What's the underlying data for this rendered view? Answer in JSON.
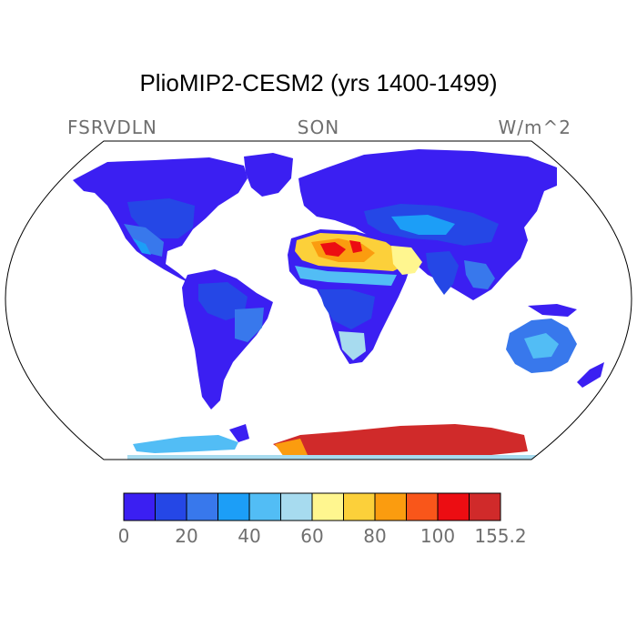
{
  "title": "PlioMIP2-CESM2 (yrs 1400-1499)",
  "variable": "FSRVDLN",
  "season": "SON",
  "units": "W/m^2",
  "colorbar": {
    "colors": [
      "#3b1ff2",
      "#2547e6",
      "#3878ec",
      "#1c9ef7",
      "#52bdf5",
      "#a7dbef",
      "#fff68f",
      "#fcd03a",
      "#fb9c0f",
      "#f9561a",
      "#ec0d12",
      "#d02a2a"
    ],
    "tick_labels": [
      "0",
      "20",
      "40",
      "60",
      "80",
      "100",
      "155.2"
    ]
  }
}
